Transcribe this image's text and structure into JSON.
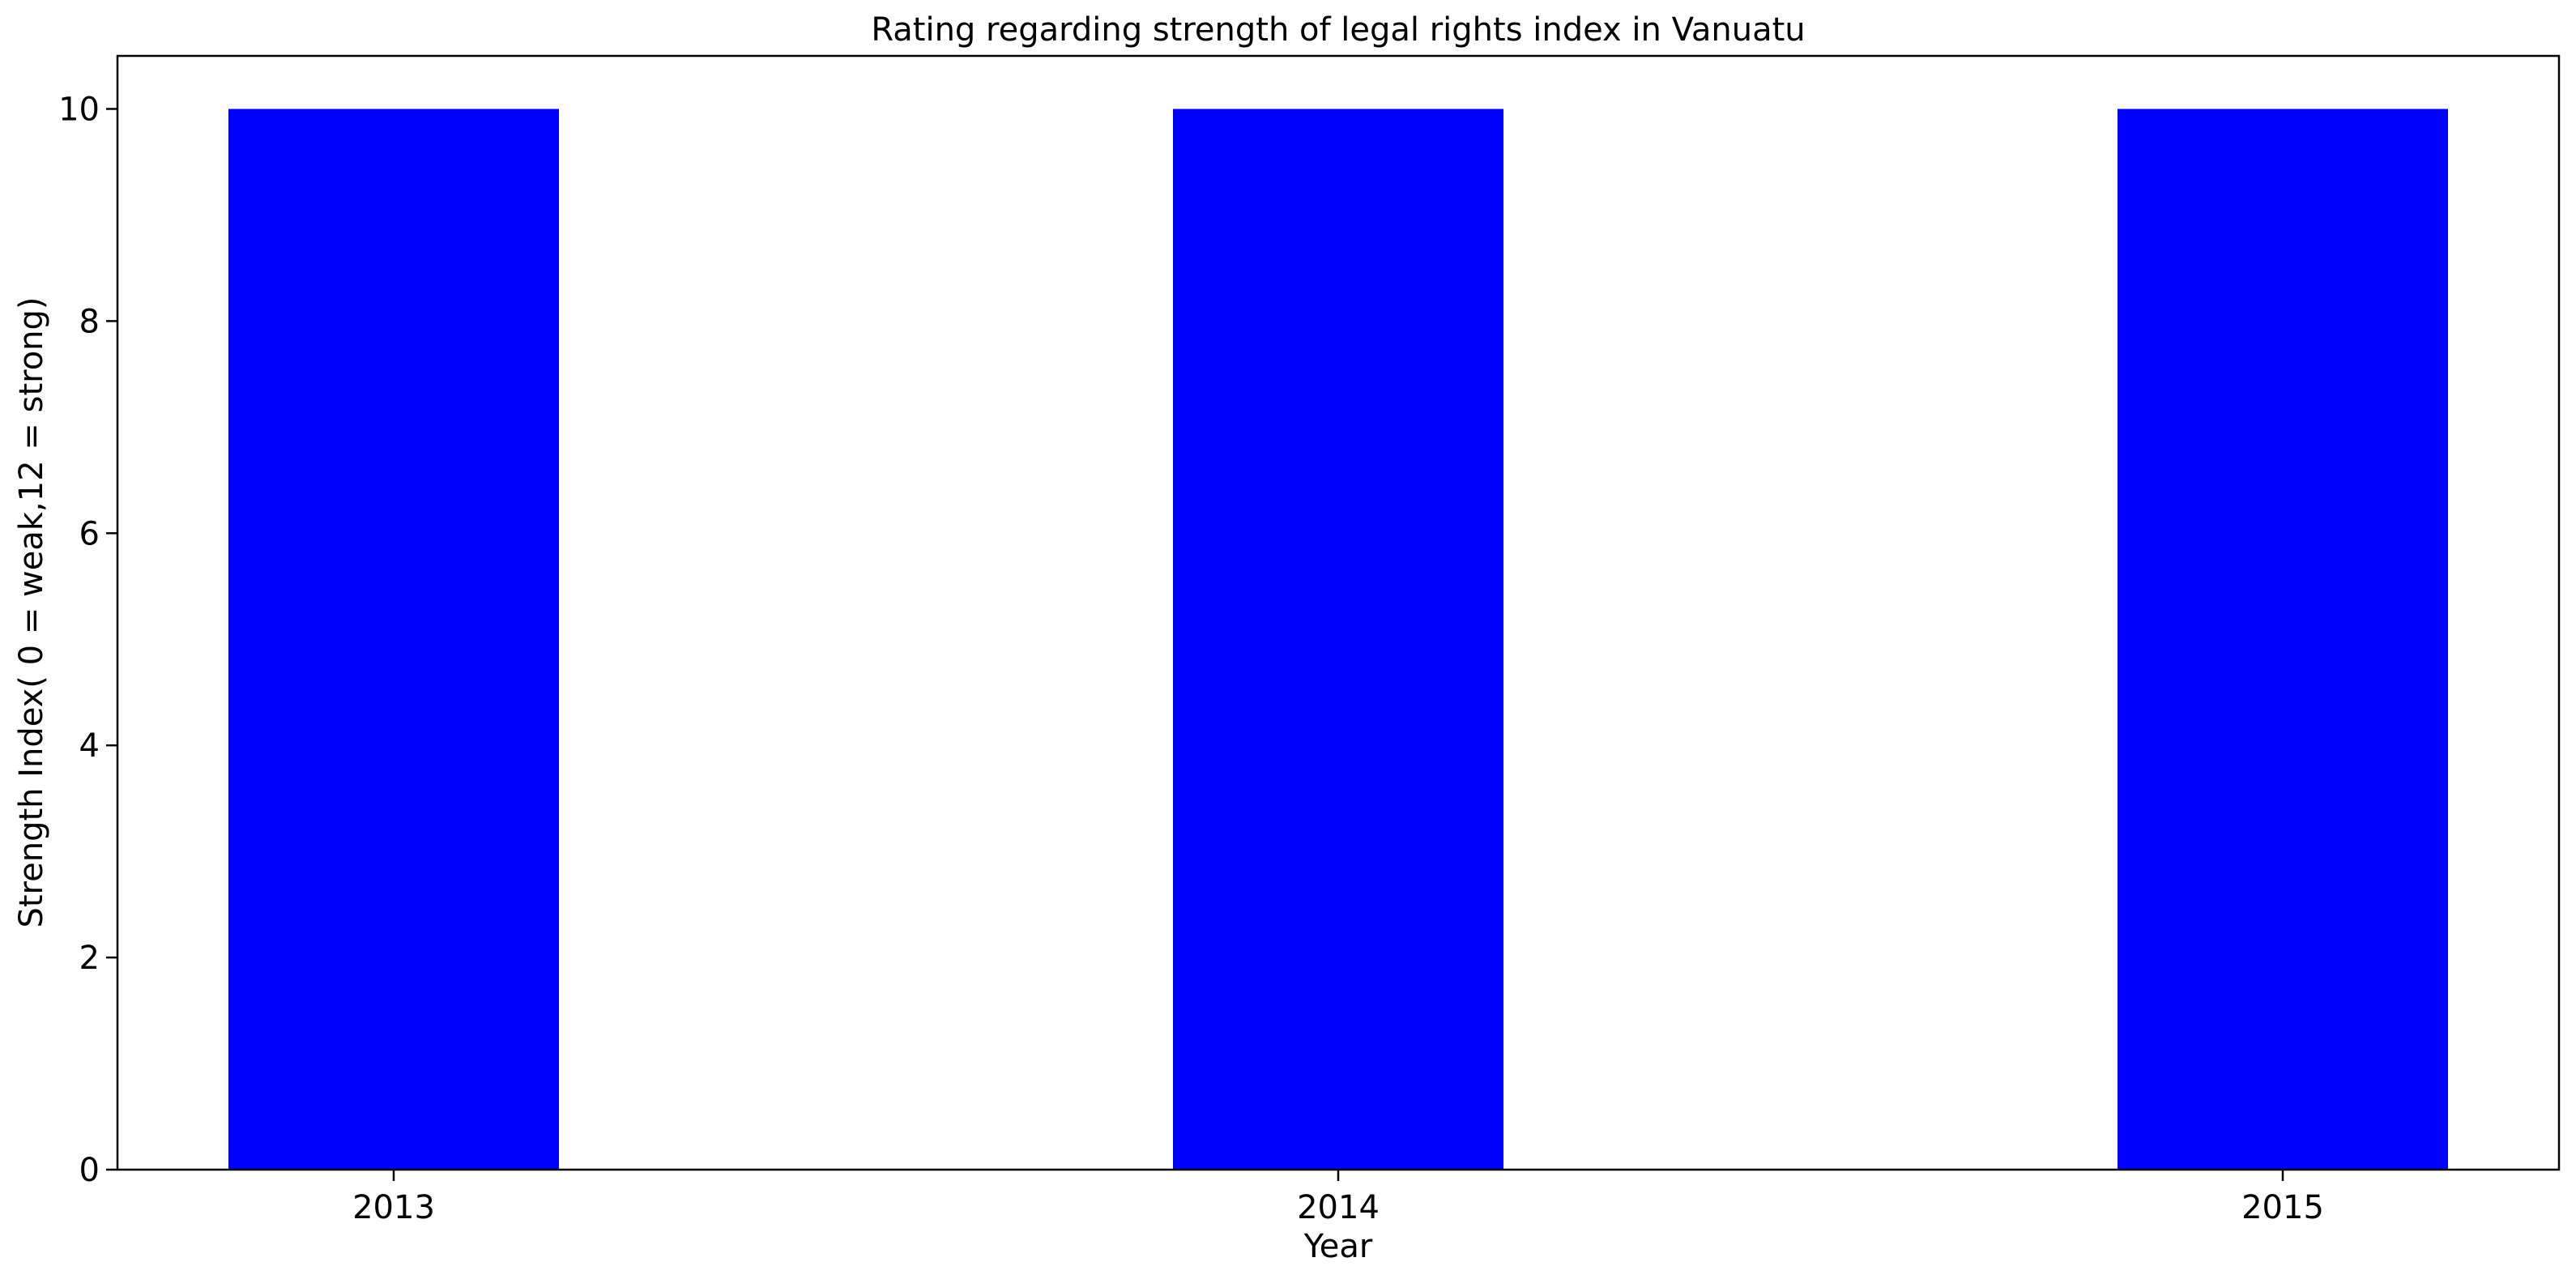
{
  "chart_data": {
    "type": "bar",
    "title": "Rating regarding strength of legal rights index in Vanuatu",
    "xlabel": "Year",
    "ylabel": "Strength Index( 0 = weak,12 = strong)",
    "categories": [
      "2013",
      "2014",
      "2015"
    ],
    "values": [
      10,
      10,
      10
    ],
    "ylim": [
      0,
      10.5
    ],
    "yticks": [
      0,
      2,
      4,
      6,
      8,
      10
    ],
    "grid": false,
    "legend": "none",
    "bar_color": "#0000ff"
  }
}
